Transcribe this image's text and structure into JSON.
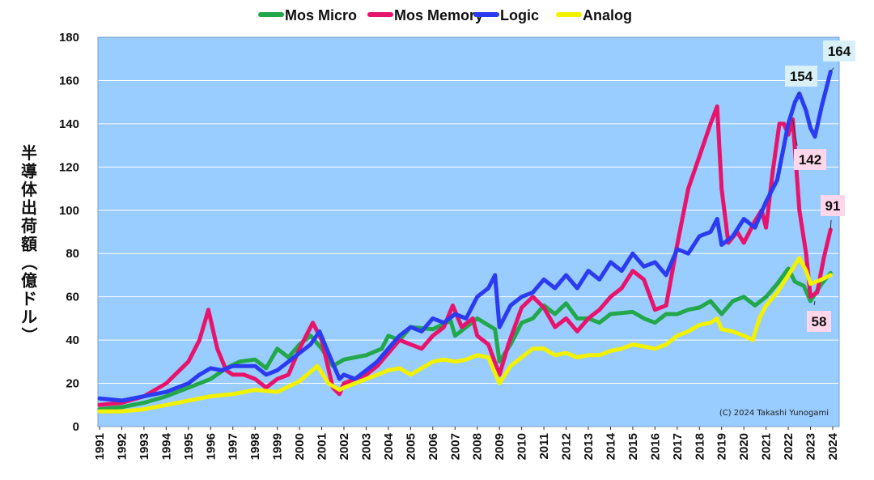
{
  "chart_data": {
    "type": "line",
    "title": "",
    "xlabel": "",
    "ylabel": "半導体出荷額（億ドル）",
    "ylim": [
      0,
      180
    ],
    "yticks": [
      0,
      20,
      40,
      60,
      80,
      100,
      120,
      140,
      160,
      180
    ],
    "xlim": [
      1991,
      2024
    ],
    "xticks": [
      "1991",
      "1992",
      "1993",
      "1994",
      "1995",
      "1996",
      "1997",
      "1998",
      "1999",
      "2000",
      "2001",
      "2002",
      "2003",
      "2004",
      "2005",
      "2006",
      "2007",
      "2008",
      "2009",
      "2010",
      "2011",
      "2012",
      "2013",
      "2014",
      "2015",
      "2016",
      "2017",
      "2018",
      "2019",
      "2020",
      "2021",
      "2022",
      "2023",
      "2024"
    ],
    "grid": true,
    "legend_position": "top",
    "plot_background": "#99ccff",
    "credit": "(C) 2024 Takashi Yunogami",
    "series": [
      {
        "name": "Mos Micro",
        "color": "#22a84a",
        "points": [
          [
            1991,
            8
          ],
          [
            1992,
            9
          ],
          [
            1993,
            11
          ],
          [
            1994,
            14
          ],
          [
            1995,
            18
          ],
          [
            1996,
            22
          ],
          [
            1996.7,
            27
          ],
          [
            1997.3,
            30
          ],
          [
            1998,
            31
          ],
          [
            1998.5,
            27
          ],
          [
            1999,
            36
          ],
          [
            1999.5,
            32
          ],
          [
            2000,
            38
          ],
          [
            2000.5,
            42
          ],
          [
            2001,
            36
          ],
          [
            2001.5,
            28
          ],
          [
            2002,
            31
          ],
          [
            2003,
            33
          ],
          [
            2003.7,
            36
          ],
          [
            2004,
            42
          ],
          [
            2004.5,
            40
          ],
          [
            2005,
            46
          ],
          [
            2006,
            45
          ],
          [
            2006.8,
            49
          ],
          [
            2007,
            42
          ],
          [
            2007.5,
            46
          ],
          [
            2008,
            50
          ],
          [
            2008.8,
            45
          ],
          [
            2009,
            30
          ],
          [
            2009.5,
            38
          ],
          [
            2010,
            48
          ],
          [
            2010.5,
            50
          ],
          [
            2011,
            56
          ],
          [
            2011.5,
            52
          ],
          [
            2012,
            57
          ],
          [
            2012.5,
            50
          ],
          [
            2013,
            50
          ],
          [
            2013.5,
            48
          ],
          [
            2014,
            52
          ],
          [
            2015,
            53
          ],
          [
            2015.5,
            50
          ],
          [
            2016,
            48
          ],
          [
            2016.5,
            52
          ],
          [
            2017,
            52
          ],
          [
            2017.5,
            54
          ],
          [
            2018,
            55
          ],
          [
            2018.5,
            58
          ],
          [
            2019,
            52
          ],
          [
            2019.5,
            58
          ],
          [
            2020,
            60
          ],
          [
            2020.5,
            56
          ],
          [
            2021,
            60
          ],
          [
            2021.5,
            66
          ],
          [
            2022,
            73
          ],
          [
            2022.3,
            67
          ],
          [
            2022.7,
            65
          ],
          [
            2023,
            58
          ],
          [
            2023.5,
            66
          ],
          [
            2023.9,
            71
          ]
        ]
      },
      {
        "name": "Mos Memory",
        "color": "#e8146b",
        "points": [
          [
            1991,
            10
          ],
          [
            1992,
            11
          ],
          [
            1993,
            14
          ],
          [
            1994,
            20
          ],
          [
            1995,
            30
          ],
          [
            1995.5,
            40
          ],
          [
            1995.9,
            54
          ],
          [
            1996.3,
            36
          ],
          [
            1996.7,
            26
          ],
          [
            1997,
            24
          ],
          [
            1997.5,
            24
          ],
          [
            1998,
            22
          ],
          [
            1998.5,
            18
          ],
          [
            1999,
            22
          ],
          [
            1999.5,
            24
          ],
          [
            2000,
            36
          ],
          [
            2000.6,
            48
          ],
          [
            2001,
            40
          ],
          [
            2001.5,
            18
          ],
          [
            2001.8,
            15
          ],
          [
            2002,
            20
          ],
          [
            2002.5,
            22
          ],
          [
            2003,
            24
          ],
          [
            2003.5,
            28
          ],
          [
            2004,
            34
          ],
          [
            2004.5,
            40
          ],
          [
            2005,
            38
          ],
          [
            2005.5,
            36
          ],
          [
            2006,
            42
          ],
          [
            2006.5,
            46
          ],
          [
            2006.9,
            56
          ],
          [
            2007.3,
            46
          ],
          [
            2007.8,
            50
          ],
          [
            2008,
            42
          ],
          [
            2008.5,
            38
          ],
          [
            2009,
            24
          ],
          [
            2009.4,
            38
          ],
          [
            2010,
            55
          ],
          [
            2010.5,
            60
          ],
          [
            2011,
            55
          ],
          [
            2011.5,
            46
          ],
          [
            2012,
            50
          ],
          [
            2012.5,
            44
          ],
          [
            2013,
            50
          ],
          [
            2013.5,
            54
          ],
          [
            2014,
            60
          ],
          [
            2014.5,
            64
          ],
          [
            2015,
            72
          ],
          [
            2015.5,
            68
          ],
          [
            2016,
            54
          ],
          [
            2016.5,
            56
          ],
          [
            2017,
            84
          ],
          [
            2017.5,
            110
          ],
          [
            2018,
            125
          ],
          [
            2018.5,
            140
          ],
          [
            2018.8,
            148
          ],
          [
            2019,
            110
          ],
          [
            2019.3,
            85
          ],
          [
            2019.7,
            90
          ],
          [
            2020,
            85
          ],
          [
            2020.5,
            95
          ],
          [
            2020.8,
            100
          ],
          [
            2021,
            92
          ],
          [
            2021.3,
            118
          ],
          [
            2021.6,
            140
          ],
          [
            2021.8,
            140
          ],
          [
            2022,
            135
          ],
          [
            2022.2,
            142
          ],
          [
            2022.5,
            100
          ],
          [
            2022.8,
            80
          ],
          [
            2023,
            60
          ],
          [
            2023.3,
            62
          ],
          [
            2023.6,
            78
          ],
          [
            2023.9,
            91
          ]
        ]
      },
      {
        "name": "Logic",
        "color": "#2b3bf0",
        "points": [
          [
            1991,
            13
          ],
          [
            1992,
            12
          ],
          [
            1993,
            14
          ],
          [
            1994,
            16
          ],
          [
            1995,
            20
          ],
          [
            1995.5,
            24
          ],
          [
            1996,
            27
          ],
          [
            1996.5,
            26
          ],
          [
            1997,
            28
          ],
          [
            1997.5,
            28
          ],
          [
            1998,
            28
          ],
          [
            1998.5,
            24
          ],
          [
            1999,
            26
          ],
          [
            1999.5,
            30
          ],
          [
            2000,
            34
          ],
          [
            2000.5,
            38
          ],
          [
            2000.9,
            44
          ],
          [
            2001.3,
            34
          ],
          [
            2001.8,
            22
          ],
          [
            2002,
            24
          ],
          [
            2002.5,
            22
          ],
          [
            2003,
            26
          ],
          [
            2003.5,
            30
          ],
          [
            2004,
            36
          ],
          [
            2004.5,
            42
          ],
          [
            2005,
            46
          ],
          [
            2005.5,
            44
          ],
          [
            2006,
            50
          ],
          [
            2006.5,
            48
          ],
          [
            2007,
            52
          ],
          [
            2007.5,
            50
          ],
          [
            2008,
            60
          ],
          [
            2008.5,
            64
          ],
          [
            2008.8,
            70
          ],
          [
            2009,
            46
          ],
          [
            2009.5,
            56
          ],
          [
            2010,
            60
          ],
          [
            2010.5,
            62
          ],
          [
            2011,
            68
          ],
          [
            2011.5,
            64
          ],
          [
            2012,
            70
          ],
          [
            2012.5,
            64
          ],
          [
            2013,
            72
          ],
          [
            2013.5,
            68
          ],
          [
            2014,
            76
          ],
          [
            2014.5,
            72
          ],
          [
            2015,
            80
          ],
          [
            2015.5,
            74
          ],
          [
            2016,
            76
          ],
          [
            2016.5,
            70
          ],
          [
            2017,
            82
          ],
          [
            2017.5,
            80
          ],
          [
            2018,
            88
          ],
          [
            2018.5,
            90
          ],
          [
            2018.8,
            96
          ],
          [
            2019,
            84
          ],
          [
            2019.5,
            88
          ],
          [
            2020,
            96
          ],
          [
            2020.5,
            92
          ],
          [
            2021,
            104
          ],
          [
            2021.5,
            114
          ],
          [
            2022,
            140
          ],
          [
            2022.3,
            150
          ],
          [
            2022.5,
            154
          ],
          [
            2022.8,
            146
          ],
          [
            2023,
            138
          ],
          [
            2023.2,
            134
          ],
          [
            2023.5,
            148
          ],
          [
            2023.9,
            164
          ]
        ]
      },
      {
        "name": "Analog",
        "color": "#f2f200",
        "points": [
          [
            1991,
            7
          ],
          [
            1992,
            7
          ],
          [
            1993,
            8
          ],
          [
            1994,
            10
          ],
          [
            1995,
            12
          ],
          [
            1996,
            14
          ],
          [
            1997,
            15
          ],
          [
            1998,
            17
          ],
          [
            1999,
            16
          ],
          [
            2000,
            21
          ],
          [
            2000.8,
            28
          ],
          [
            2001.3,
            20
          ],
          [
            2001.8,
            17
          ],
          [
            2002,
            18
          ],
          [
            2002.5,
            20
          ],
          [
            2003,
            22
          ],
          [
            2003.5,
            24
          ],
          [
            2004,
            26
          ],
          [
            2004.5,
            27
          ],
          [
            2005,
            24
          ],
          [
            2005.5,
            27
          ],
          [
            2006,
            30
          ],
          [
            2006.5,
            31
          ],
          [
            2007,
            30
          ],
          [
            2007.5,
            31
          ],
          [
            2008,
            33
          ],
          [
            2008.5,
            32
          ],
          [
            2009,
            20
          ],
          [
            2009.5,
            28
          ],
          [
            2010,
            32
          ],
          [
            2010.5,
            36
          ],
          [
            2011,
            36
          ],
          [
            2011.5,
            33
          ],
          [
            2012,
            34
          ],
          [
            2012.5,
            32
          ],
          [
            2013,
            33
          ],
          [
            2013.5,
            33
          ],
          [
            2014,
            35
          ],
          [
            2014.5,
            36
          ],
          [
            2015,
            38
          ],
          [
            2015.5,
            37
          ],
          [
            2016,
            36
          ],
          [
            2016.5,
            38
          ],
          [
            2017,
            42
          ],
          [
            2017.5,
            44
          ],
          [
            2018,
            47
          ],
          [
            2018.5,
            48
          ],
          [
            2018.8,
            50
          ],
          [
            2019,
            45
          ],
          [
            2019.5,
            44
          ],
          [
            2020,
            42
          ],
          [
            2020.4,
            40
          ],
          [
            2020.7,
            50
          ],
          [
            2021,
            56
          ],
          [
            2021.5,
            62
          ],
          [
            2022,
            70
          ],
          [
            2022.5,
            78
          ],
          [
            2022.8,
            72
          ],
          [
            2023,
            66
          ],
          [
            2023.5,
            68
          ],
          [
            2023.9,
            70
          ]
        ]
      }
    ],
    "annotations": [
      {
        "label": "164",
        "x": 2023.9,
        "y": 164,
        "color": "#d9f0f7"
      },
      {
        "label": "154",
        "x": 2022.5,
        "y": 154,
        "color": "#d9f0f7"
      },
      {
        "label": "142",
        "x": 2022.2,
        "y": 142,
        "color": "#ffd6ea"
      },
      {
        "label": "91",
        "x": 2023.9,
        "y": 91,
        "color": "#ffd6ea"
      },
      {
        "label": "58",
        "x": 2023.2,
        "y": 58,
        "color": "#ffd6ea"
      }
    ]
  }
}
